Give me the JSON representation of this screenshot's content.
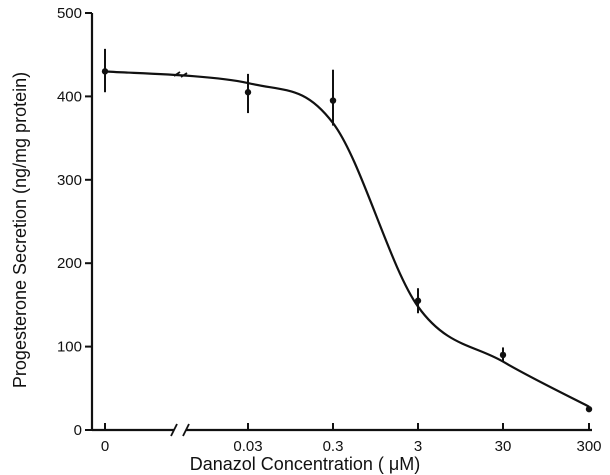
{
  "chart_data": {
    "type": "scatter",
    "title": "",
    "xlabel": "Danazol Concentration ( μM)",
    "ylabel": "Progesterone Secretion (ng/mg protein)",
    "x_scale": "log",
    "x_axis_break": true,
    "ylim": [
      0,
      500
    ],
    "y_ticks": [
      0,
      100,
      200,
      300,
      400,
      500
    ],
    "x_tick_labels": [
      "0",
      "0.03",
      "0.3",
      "3",
      "30",
      "300"
    ],
    "grid": false,
    "legend": "none",
    "series": [
      {
        "points": [
          {
            "x": "0",
            "y": 430,
            "err_low": 405,
            "err_high": 457
          },
          {
            "x": "0.03",
            "y": 405,
            "err_low": 380,
            "err_high": 427
          },
          {
            "x": "0.3",
            "y": 395,
            "err_low": 365,
            "err_high": 432
          },
          {
            "x": "3",
            "y": 155,
            "err_low": 140,
            "err_high": 170
          },
          {
            "x": "30",
            "y": 90,
            "err_low": 82,
            "err_high": 99
          },
          {
            "x": "300",
            "y": 25,
            "err_low": 25,
            "err_high": 25
          }
        ]
      }
    ],
    "fit_curve": [
      {
        "x": "0",
        "y": 430
      },
      {
        "x": "0.03",
        "y": 416
      },
      {
        "x": "0.3",
        "y": 368
      },
      {
        "x": "3",
        "y": 148
      },
      {
        "x": "30",
        "y": 82
      },
      {
        "x": "300",
        "y": 28
      }
    ]
  }
}
